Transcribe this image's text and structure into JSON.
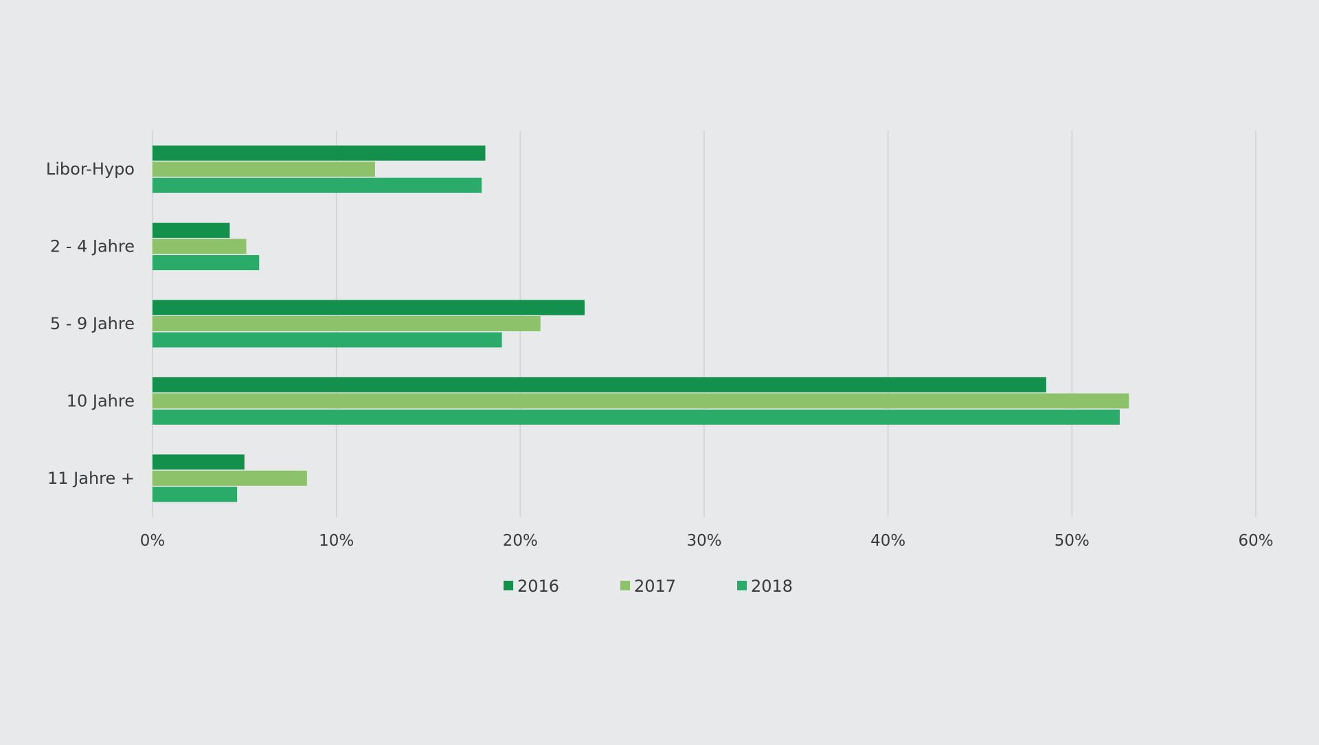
{
  "chart_data": {
    "type": "bar",
    "orientation": "horizontal",
    "title": "",
    "xlabel": "",
    "ylabel": "",
    "categories": [
      "Libor-Hypo",
      "2 - 4 Jahre",
      "5 - 9 Jahre",
      "10 Jahre",
      "11 Jahre +"
    ],
    "series": [
      {
        "name": "2016",
        "color": "#12904c",
        "values": [
          18.1,
          4.2,
          23.5,
          48.6,
          5.0
        ]
      },
      {
        "name": "2017",
        "color": "#8dc26a",
        "values": [
          12.1,
          5.1,
          21.1,
          53.1,
          8.4
        ]
      },
      {
        "name": "2018",
        "color": "#2aab6a",
        "values": [
          17.9,
          5.8,
          19.0,
          52.6,
          4.6
        ]
      }
    ],
    "xlim": [
      0,
      60
    ],
    "xticks": [
      0,
      10,
      20,
      30,
      40,
      50,
      60
    ],
    "xtick_labels": [
      "0%",
      "10%",
      "20%",
      "30%",
      "40%",
      "50%",
      "60%"
    ],
    "grid": true,
    "legend": "bottom-center"
  }
}
